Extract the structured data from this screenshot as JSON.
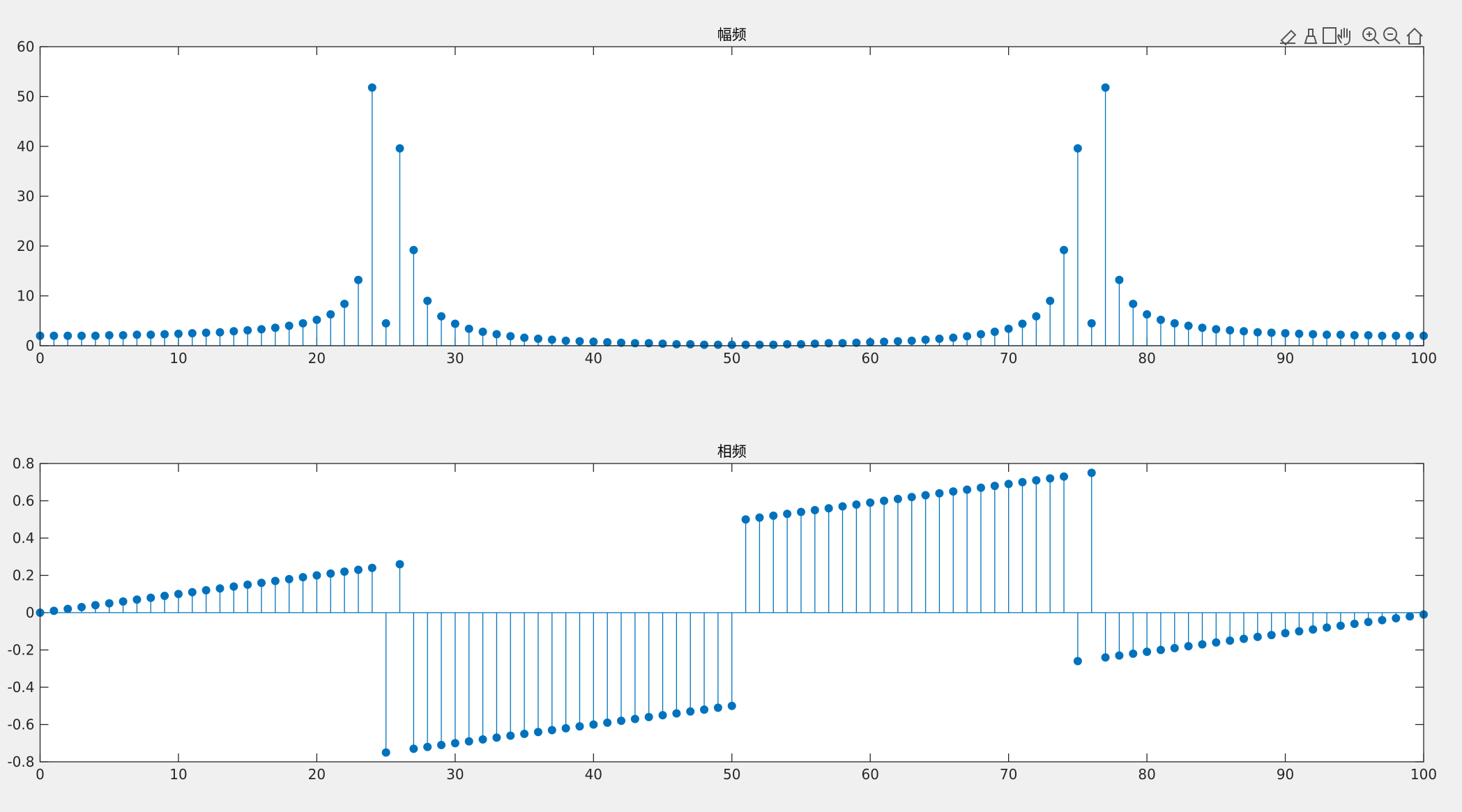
{
  "chart_data": [
    {
      "type": "stem",
      "title": "幅频",
      "color": "#0072bd",
      "x": [
        0,
        1,
        2,
        3,
        4,
        5,
        6,
        7,
        8,
        9,
        10,
        11,
        12,
        13,
        14,
        15,
        16,
        17,
        18,
        19,
        20,
        21,
        22,
        23,
        24,
        25,
        26,
        27,
        28,
        29,
        30,
        31,
        32,
        33,
        34,
        35,
        36,
        37,
        38,
        39,
        40,
        41,
        42,
        43,
        44,
        45,
        46,
        47,
        48,
        49,
        50,
        51,
        52,
        53,
        54,
        55,
        56,
        57,
        58,
        59,
        60,
        61,
        62,
        63,
        64,
        65,
        66,
        67,
        68,
        69,
        70,
        71,
        72,
        73,
        74,
        75,
        76,
        77,
        78,
        79,
        80,
        81,
        82,
        83,
        84,
        85,
        86,
        87,
        88,
        89,
        90,
        91,
        92,
        93,
        94,
        95,
        96,
        97,
        98,
        99,
        100
      ],
      "values": [
        2.0,
        2.0,
        2.0,
        2.0,
        2.0,
        2.1,
        2.1,
        2.2,
        2.2,
        2.3,
        2.4,
        2.5,
        2.6,
        2.7,
        2.9,
        3.1,
        3.3,
        3.6,
        4.0,
        4.5,
        5.2,
        6.3,
        8.4,
        13.2,
        51.8,
        4.5,
        39.6,
        19.2,
        9.0,
        5.9,
        4.4,
        3.4,
        2.8,
        2.3,
        1.9,
        1.6,
        1.4,
        1.2,
        1.0,
        0.9,
        0.8,
        0.7,
        0.6,
        0.5,
        0.5,
        0.4,
        0.3,
        0.3,
        0.2,
        0.2,
        0.2,
        0.2,
        0.2,
        0.2,
        0.3,
        0.3,
        0.4,
        0.5,
        0.5,
        0.6,
        0.7,
        0.8,
        0.9,
        1.0,
        1.2,
        1.4,
        1.6,
        1.9,
        2.3,
        2.8,
        3.4,
        4.4,
        5.9,
        9.0,
        19.2,
        39.6,
        4.5,
        51.8,
        13.2,
        8.4,
        6.3,
        5.2,
        4.5,
        4.0,
        3.6,
        3.3,
        3.1,
        2.9,
        2.7,
        2.6,
        2.5,
        2.4,
        2.3,
        2.2,
        2.2,
        2.1,
        2.1,
        2.0,
        2.0,
        2.0,
        2.0
      ],
      "xlim": [
        0,
        100
      ],
      "xticks": [
        0,
        10,
        20,
        30,
        40,
        50,
        60,
        70,
        80,
        90,
        100
      ],
      "ylim": [
        0,
        60
      ],
      "yticks": [
        0,
        10,
        20,
        30,
        40,
        50,
        60
      ]
    },
    {
      "type": "stem",
      "title": "相频",
      "color": "#0072bd",
      "x": [
        0,
        1,
        2,
        3,
        4,
        5,
        6,
        7,
        8,
        9,
        10,
        11,
        12,
        13,
        14,
        15,
        16,
        17,
        18,
        19,
        20,
        21,
        22,
        23,
        24,
        25,
        26,
        27,
        28,
        29,
        30,
        31,
        32,
        33,
        34,
        35,
        36,
        37,
        38,
        39,
        40,
        41,
        42,
        43,
        44,
        45,
        46,
        47,
        48,
        49,
        50,
        51,
        52,
        53,
        54,
        55,
        56,
        57,
        58,
        59,
        60,
        61,
        62,
        63,
        64,
        65,
        66,
        67,
        68,
        69,
        70,
        71,
        72,
        73,
        74,
        75,
        76,
        77,
        78,
        79,
        80,
        81,
        82,
        83,
        84,
        85,
        86,
        87,
        88,
        89,
        90,
        91,
        92,
        93,
        94,
        95,
        96,
        97,
        98,
        99,
        100
      ],
      "values": [
        0,
        0.01,
        0.02,
        0.03,
        0.04,
        0.05,
        0.06,
        0.07,
        0.08,
        0.09,
        0.1,
        0.11,
        0.12,
        0.13,
        0.14,
        0.15,
        0.16,
        0.17,
        0.18,
        0.19,
        0.2,
        0.21,
        0.22,
        0.23,
        0.24,
        -0.75,
        0.26,
        -0.73,
        -0.72,
        -0.71,
        -0.7,
        -0.69,
        -0.68,
        -0.67,
        -0.66,
        -0.65,
        -0.64,
        -0.63,
        -0.62,
        -0.61,
        -0.6,
        -0.59,
        -0.58,
        -0.57,
        -0.56,
        -0.55,
        -0.54,
        -0.53,
        -0.52,
        -0.51,
        -0.5,
        0.5,
        0.51,
        0.52,
        0.53,
        0.54,
        0.55,
        0.56,
        0.57,
        0.58,
        0.59,
        0.6,
        0.61,
        0.62,
        0.63,
        0.64,
        0.65,
        0.66,
        0.67,
        0.68,
        0.69,
        0.7,
        0.71,
        0.72,
        0.73,
        -0.26,
        0.75,
        -0.24,
        -0.23,
        -0.22,
        -0.21,
        -0.2,
        -0.19,
        -0.18,
        -0.17,
        -0.16,
        -0.15,
        -0.14,
        -0.13,
        -0.12,
        -0.11,
        -0.1,
        -0.09,
        -0.08,
        -0.07,
        -0.06,
        -0.05,
        -0.04,
        -0.03,
        -0.02,
        -0.01
      ],
      "xlim": [
        0,
        100
      ],
      "xticks": [
        0,
        10,
        20,
        30,
        40,
        50,
        60,
        70,
        80,
        90,
        100
      ],
      "ylim": [
        -0.8,
        0.8
      ],
      "yticks": [
        -0.8,
        -0.6,
        -0.4,
        -0.2,
        0,
        0.2,
        0.4,
        0.6,
        0.8
      ]
    }
  ]
}
